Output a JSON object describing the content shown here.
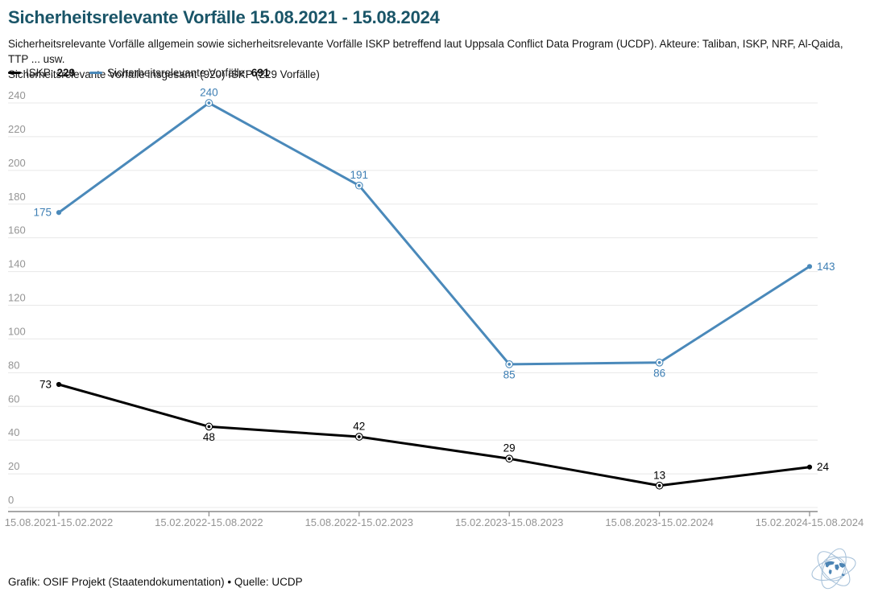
{
  "header": {
    "title": "Sicherheitsrelevante Vorfälle 15.08.2021 - 15.08.2024",
    "subtitle_line1": "Sicherheitsrelevante Vorfälle allgemein sowie sicherheitsrelevante Vorfälle ISKP betreffend laut Uppsala Conflict Data Program (UCDP). Akteure: Taliban, ISKP, NRF, Al-Qaida, TTP ... usw.",
    "subtitle_line2": "Sicherheitsrelevante Vorfälle insgesamt (920) ISKP (229 Vorfälle)"
  },
  "legend": {
    "items": [
      {
        "label": "ISKP:",
        "value": "229",
        "color": "#000000"
      },
      {
        "label": "Sicherheitsrelevante Vorfälle:",
        "value": "691",
        "color": "#4a89ba"
      }
    ]
  },
  "chart_data": {
    "type": "line",
    "categories": [
      "15.08.2021-15.02.2022",
      "15.02.2022-15.08.2022",
      "15.08.2022-15.02.2023",
      "15.02.2023-15.08.2023",
      "15.08.2023-15.02.2024",
      "15.02.2024-15.08.2024"
    ],
    "series": [
      {
        "name": "Sicherheitsrelevante Vorfälle",
        "color": "#4a89ba",
        "label_color": "#3e7fb4",
        "values": [
          175,
          240,
          191,
          85,
          86,
          143
        ]
      },
      {
        "name": "ISKP",
        "color": "#000000",
        "label_color": "#000000",
        "values": [
          73,
          48,
          42,
          29,
          13,
          24
        ]
      }
    ],
    "title": "Sicherheitsrelevante Vorfälle 15.08.2021 - 15.08.2024",
    "xlabel": "",
    "ylabel": "",
    "ylim": [
      0,
      240
    ],
    "ytick_step": 20,
    "grid": true,
    "legend_position": "top",
    "data_labels": true
  },
  "footer": {
    "credit": "Grafik: OSIF Projekt (Staatendokumentation)  • Quelle: UCDP"
  },
  "colors": {
    "title_teal": "#1a5568",
    "accent_blue": "#4a89ba",
    "series_black": "#000000",
    "axis_text": "#949494",
    "gridline": "#e8e8e8",
    "axis_line": "#8a8a8a"
  }
}
